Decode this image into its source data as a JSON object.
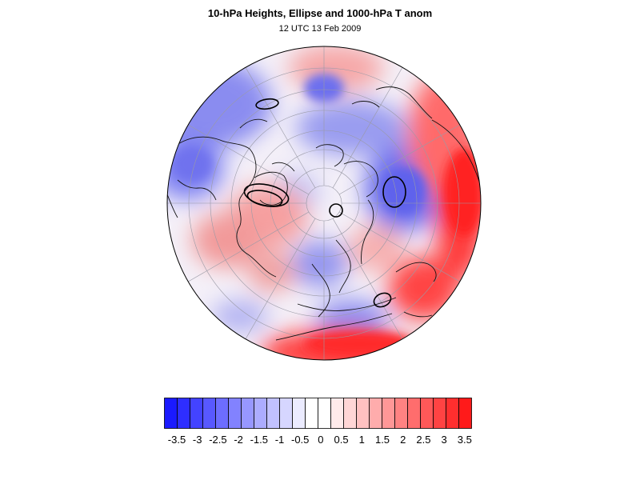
{
  "title": "10-hPa Heights, Ellipse and 1000-hPa T anom",
  "subtitle": "12 UTC 13 Feb 2009",
  "colorbar": {
    "labels": [
      "-3.5",
      "-3",
      "-2.5",
      "-2",
      "-1.5",
      "-1",
      "-0.5",
      "0",
      "0.5",
      "1",
      "1.5",
      "2",
      "2.5",
      "3",
      "3.5"
    ],
    "colors": [
      "#1a1aff",
      "#2e2eff",
      "#4343ff",
      "#5858ff",
      "#6d6dff",
      "#8282ff",
      "#9797ff",
      "#acacff",
      "#c1c1ff",
      "#d6d6ff",
      "#ebebff",
      "#ffffff",
      "#ffffff",
      "#ffebeb",
      "#ffd6d6",
      "#ffc1c1",
      "#ffacac",
      "#ff9797",
      "#ff8282",
      "#ff6d6d",
      "#ff5858",
      "#ff4343",
      "#ff2e2e",
      "#ff1a1a"
    ]
  },
  "map": {
    "projection": "polar-stereographic",
    "hemisphere": "northern",
    "background_color": "#ffffff",
    "coast_color": "#000000"
  }
}
